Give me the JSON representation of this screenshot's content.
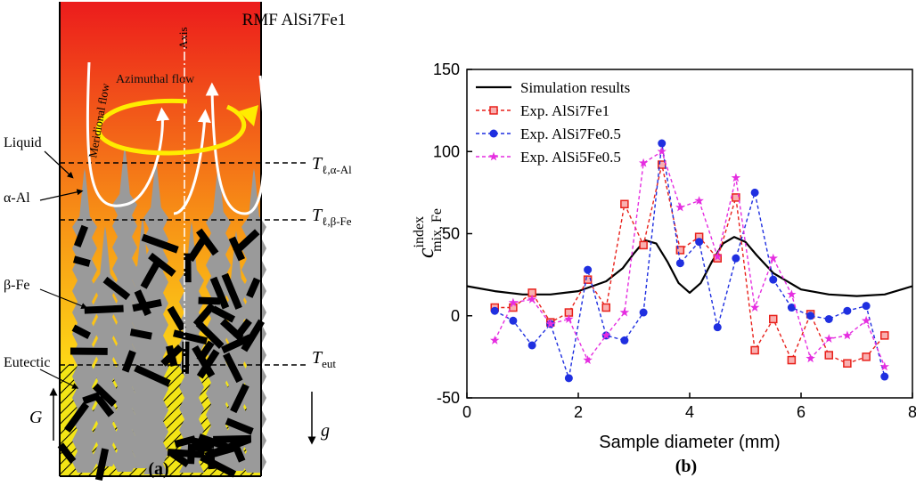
{
  "diagram": {
    "title": "RMF AlSi7Fe1",
    "axis": "Axis",
    "meridional": "Meridional flow",
    "azimuthal": "Azimuthal flow",
    "phases": [
      "Liquid",
      "α-Al",
      "β-Fe",
      "Eutectic"
    ],
    "temperatures": [
      {
        "symbol": "T",
        "sub": "ℓ,α-Al"
      },
      {
        "symbol": "T",
        "sub": "ℓ,β-Fe"
      },
      {
        "symbol": "T",
        "sub": "eut"
      }
    ],
    "gradient": "G",
    "gravity": "g",
    "label": "(a)"
  },
  "chart_data": {
    "type": "line",
    "label": "(b)",
    "x_label": "Sample diameter (mm)",
    "y_label": {
      "symbol": "c",
      "superscript": "index",
      "subscript": "mix, Fe"
    },
    "xlim": [
      0,
      8
    ],
    "xticks": [
      0,
      2,
      4,
      6,
      8
    ],
    "ylim": [
      -50,
      150
    ],
    "yticks": [
      -50,
      0,
      50,
      100,
      150
    ],
    "legend": "upper left",
    "series": [
      {
        "name": "Simulation results",
        "color": "#000000",
        "dash": "solid",
        "marker": "none",
        "x": [
          0,
          0.5,
          1,
          1.5,
          2,
          2.5,
          2.8,
          3,
          3.2,
          3.4,
          3.6,
          3.8,
          4,
          4.2,
          4.4,
          4.6,
          4.8,
          5,
          5.2,
          5.5,
          6,
          6.5,
          7,
          7.5,
          8
        ],
        "values": [
          18,
          15,
          13,
          13,
          15,
          21,
          29,
          38,
          46,
          44,
          33,
          20,
          14,
          20,
          33,
          44,
          48,
          45,
          37,
          26,
          16,
          13,
          12,
          13,
          18
        ]
      },
      {
        "name": "Exp. AlSi7Fe1",
        "color": "#e8211b",
        "dash": "dashed",
        "marker": "square",
        "x": [
          0.5,
          0.83,
          1.17,
          1.5,
          1.83,
          2.17,
          2.5,
          2.83,
          3.17,
          3.5,
          3.83,
          4.17,
          4.5,
          4.83,
          5.17,
          5.5,
          5.83,
          6.17,
          6.5,
          6.83,
          7.17,
          7.5
        ],
        "values": [
          5,
          5,
          14,
          -4,
          2,
          22,
          5,
          68,
          43,
          92,
          40,
          48,
          35,
          72,
          -21,
          -2,
          -27,
          1,
          -24,
          -29,
          -25,
          -12
        ]
      },
      {
        "name": "Exp. AlSi7Fe0.5",
        "color": "#1f2fe0",
        "dash": "dashed",
        "marker": "circle",
        "x": [
          0.5,
          0.83,
          1.17,
          1.5,
          1.83,
          2.17,
          2.5,
          2.83,
          3.17,
          3.5,
          3.83,
          4.17,
          4.5,
          4.83,
          5.17,
          5.5,
          5.83,
          6.17,
          6.5,
          6.83,
          7.17,
          7.5
        ],
        "values": [
          3,
          -3,
          -18,
          -5,
          -38,
          28,
          -12,
          -15,
          2,
          105,
          32,
          45,
          -7,
          35,
          75,
          22,
          5,
          0,
          -2,
          3,
          6,
          -37
        ]
      },
      {
        "name": "Exp. AlSi5Fe0.5",
        "color": "#e52ee0",
        "dash": "dashed",
        "marker": "star",
        "x": [
          0.5,
          0.83,
          1.17,
          1.5,
          1.83,
          2.17,
          2.5,
          2.83,
          3.17,
          3.5,
          3.83,
          4.17,
          4.5,
          4.83,
          5.17,
          5.5,
          5.83,
          6.17,
          6.5,
          6.83,
          7.17,
          7.5
        ],
        "values": [
          -15,
          8,
          10,
          -5,
          -2,
          -27,
          -12,
          2,
          93,
          100,
          66,
          70,
          36,
          84,
          5,
          35,
          13,
          -26,
          -14,
          -12,
          -3,
          -31
        ]
      }
    ]
  }
}
